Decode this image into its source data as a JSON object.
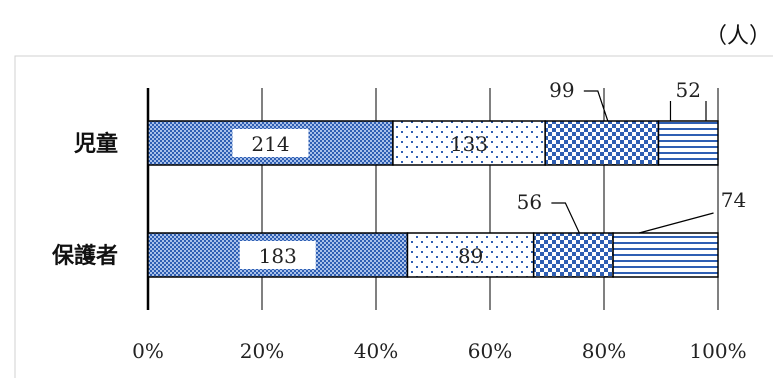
{
  "unit_label": "（人）",
  "chart_data": {
    "type": "bar",
    "orientation": "horizontal",
    "stacked": "percent",
    "categories": [
      "児童",
      "保護者"
    ],
    "series": [
      {
        "values": [
          214,
          183
        ],
        "pattern": "fine-dots"
      },
      {
        "values": [
          133,
          89
        ],
        "pattern": "sparse-dots"
      },
      {
        "values": [
          99,
          56
        ],
        "pattern": "checker"
      },
      {
        "values": [
          52,
          74
        ],
        "pattern": "horizontal-lines"
      }
    ],
    "xlim": [
      0,
      100
    ],
    "xticks": [
      "0%",
      "20%",
      "40%",
      "60%",
      "80%",
      "100%"
    ],
    "grid": true,
    "colors": {
      "accent": "#2f5fb3",
      "pale": "#c9d9f2",
      "grid": "#000000"
    }
  }
}
